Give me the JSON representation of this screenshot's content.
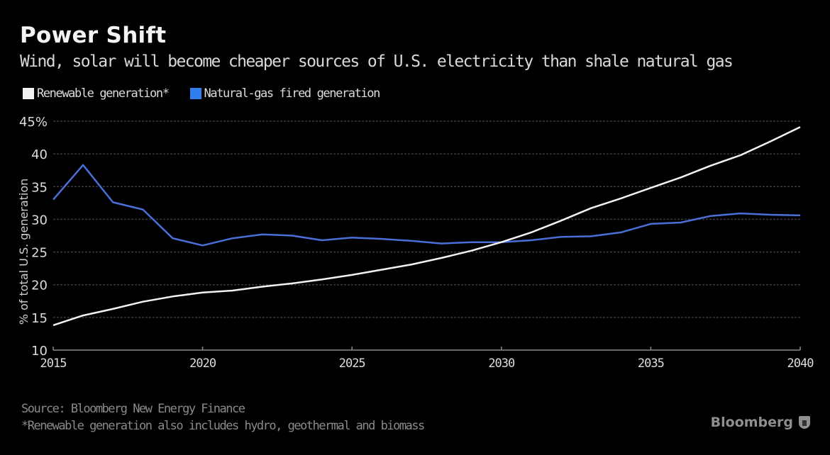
{
  "header": {
    "title": "Power Shift",
    "subtitle": "Wind, solar will become cheaper sources of U.S. electricity than shale natural gas"
  },
  "footer": {
    "source": "Source: Bloomberg New Energy Finance",
    "note": "*Renewable generation also includes hydro, geothermal and biomass",
    "brand": "Bloomberg"
  },
  "colors": {
    "background": "#000000",
    "renewable": "#f2f2f2",
    "natural_gas": "#4a6fd8",
    "legend_gas_swatch": "#2f80ed",
    "grid": "#3a3a3a"
  },
  "chart_data": {
    "type": "line",
    "title": "Power Shift",
    "subtitle": "Wind, solar will become cheaper sources of U.S. electricity than shale natural gas",
    "xlabel": "",
    "ylabel": "% of total U.S. generation",
    "xlim": [
      2015,
      2040
    ],
    "ylim": [
      10,
      45
    ],
    "xticks": [
      2015,
      2020,
      2025,
      2030,
      2035,
      2040
    ],
    "xtick_labels": [
      "2015",
      "2020",
      "2025",
      "2030",
      "2035",
      "2040"
    ],
    "yticks": [
      10,
      15,
      20,
      25,
      30,
      35,
      40,
      45
    ],
    "ytick_labels": [
      "10",
      "15",
      "20",
      "25",
      "30",
      "35",
      "40",
      "45%"
    ],
    "grid": true,
    "legend_position": "top-left",
    "x": [
      2015,
      2016,
      2017,
      2018,
      2019,
      2020,
      2021,
      2022,
      2023,
      2024,
      2025,
      2026,
      2027,
      2028,
      2029,
      2030,
      2031,
      2032,
      2033,
      2034,
      2035,
      2036,
      2037,
      2038,
      2039,
      2040
    ],
    "series": [
      {
        "name": "Renewable generation*",
        "color": "#f2f2f2",
        "values": [
          13.8,
          15.3,
          16.3,
          17.4,
          18.2,
          18.8,
          19.1,
          19.7,
          20.2,
          20.8,
          21.5,
          22.3,
          23.1,
          24.1,
          25.2,
          26.5,
          28.0,
          29.8,
          31.7,
          33.2,
          34.8,
          36.4,
          38.2,
          39.8,
          41.9,
          44.1
        ]
      },
      {
        "name": "Natural-gas fired generation",
        "color": "#4a6fd8",
        "values": [
          33.0,
          38.3,
          32.6,
          31.5,
          27.1,
          26.0,
          27.1,
          27.7,
          27.5,
          26.8,
          27.2,
          27.0,
          26.7,
          26.3,
          26.5,
          26.5,
          26.8,
          27.3,
          27.4,
          28.0,
          29.3,
          29.5,
          30.5,
          30.9,
          30.7,
          30.6
        ]
      }
    ]
  }
}
